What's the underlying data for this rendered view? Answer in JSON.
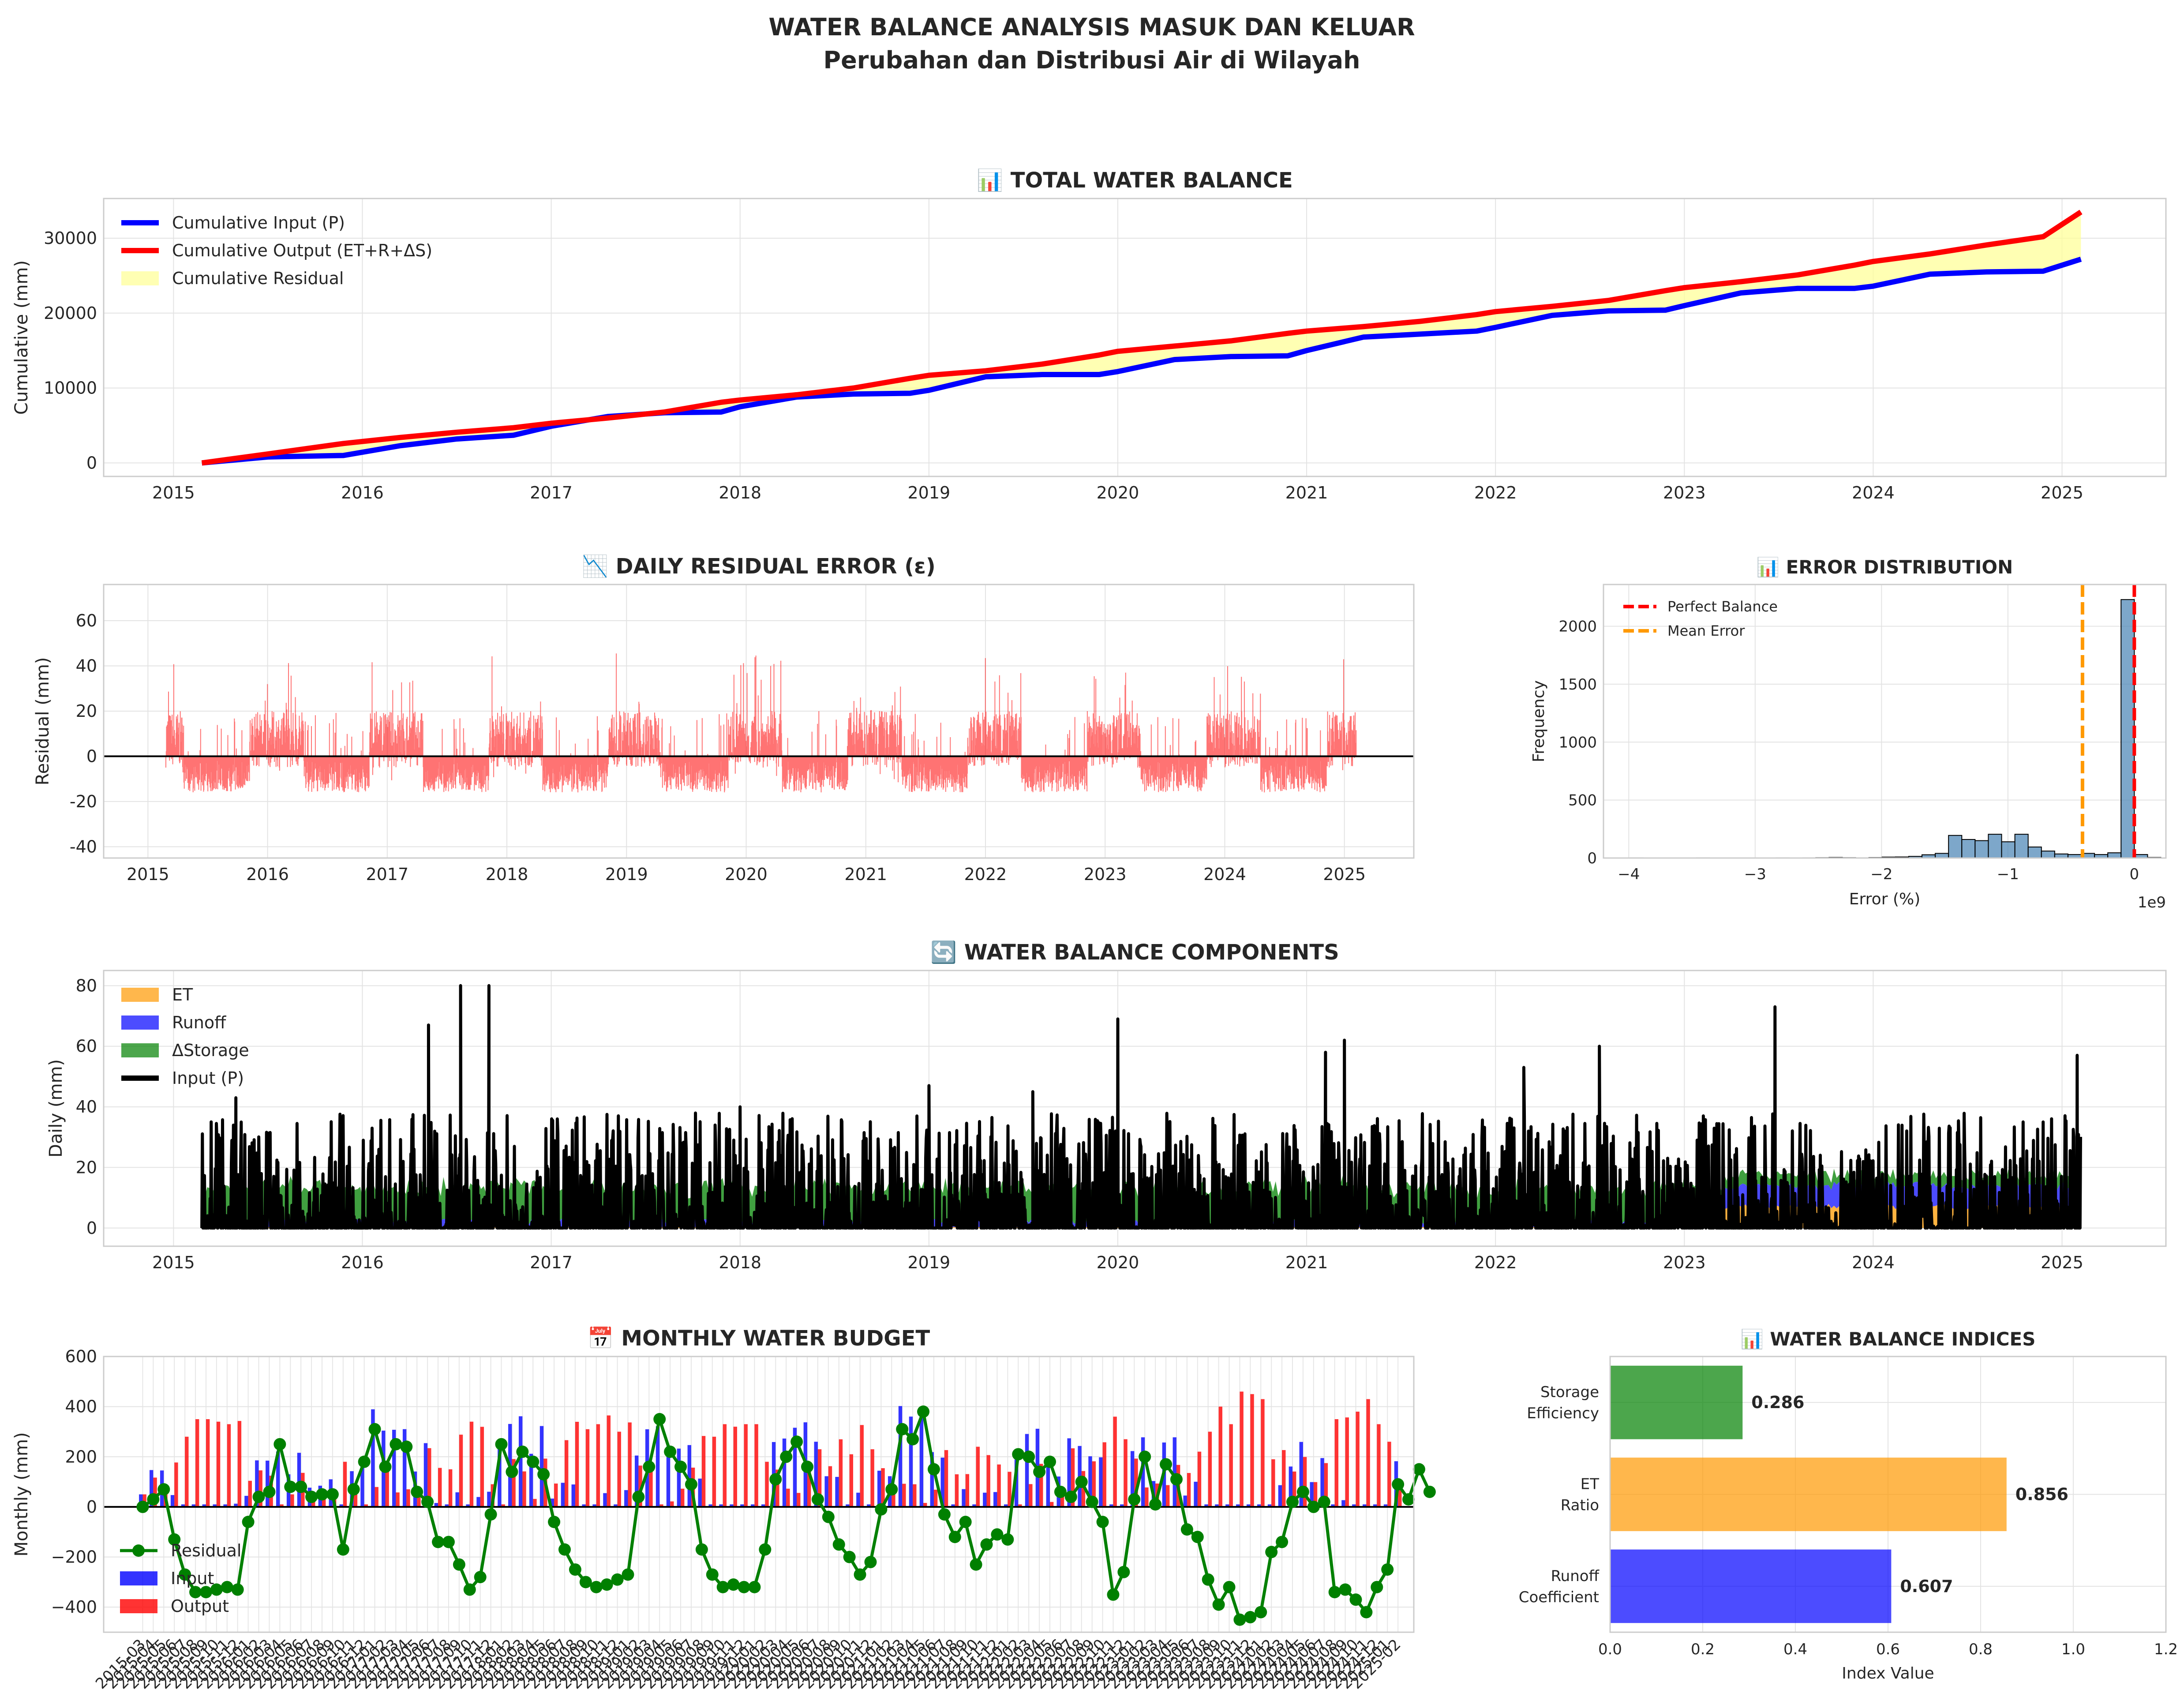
{
  "figure": {
    "title_line1": "WATER BALANCE ANALYSIS MASUK DAN KELUAR",
    "title_line2": "Perubahan dan Distribusi Air di Wilayah"
  },
  "chart_data": [
    {
      "id": "total",
      "type": "line",
      "title": "📊 TOTAL WATER BALANCE",
      "ylabel": "Cumulative (mm)",
      "xlabel": "",
      "xlim": [
        2014.63,
        2025.55
      ],
      "ylim": [
        -1800,
        35300
      ],
      "x_ticks": [
        2015,
        2016,
        2017,
        2018,
        2019,
        2020,
        2021,
        2022,
        2023,
        2024,
        2025
      ],
      "y_ticks": [
        0,
        10000,
        20000,
        30000
      ],
      "legend_position": "upper-left",
      "grid": true,
      "series": [
        {
          "name": "Cumulative Input (P)",
          "color": "#0000ff",
          "x": [
            2015.15,
            2015.5,
            2015.9,
            2016.2,
            2016.5,
            2016.8,
            2017.0,
            2017.3,
            2017.6,
            2017.9,
            2018.0,
            2018.3,
            2018.6,
            2018.9,
            2019.0,
            2019.3,
            2019.6,
            2019.9,
            2020.0,
            2020.3,
            2020.6,
            2020.9,
            2021.0,
            2021.3,
            2021.6,
            2021.9,
            2022.0,
            2022.3,
            2022.6,
            2022.9,
            2023.0,
            2023.3,
            2023.6,
            2023.9,
            2024.0,
            2024.3,
            2024.6,
            2024.9,
            2025.1
          ],
          "y": [
            0,
            800,
            1000,
            2300,
            3200,
            3700,
            4900,
            6200,
            6700,
            6800,
            7500,
            8800,
            9200,
            9300,
            9700,
            11500,
            11800,
            11800,
            12200,
            13800,
            14200,
            14300,
            15000,
            16800,
            17200,
            17600,
            18100,
            19700,
            20300,
            20400,
            21000,
            22700,
            23300,
            23300,
            23600,
            25200,
            25500,
            25600,
            27200
          ]
        },
        {
          "name": "Cumulative Output (ET+R+ΔS)",
          "color": "#ff0000",
          "x": [
            2015.15,
            2015.5,
            2015.9,
            2016.2,
            2016.5,
            2016.8,
            2017.0,
            2017.3,
            2017.6,
            2017.9,
            2018.0,
            2018.3,
            2018.6,
            2018.9,
            2019.0,
            2019.3,
            2019.6,
            2019.9,
            2020.0,
            2020.3,
            2020.6,
            2020.9,
            2021.0,
            2021.3,
            2021.6,
            2021.9,
            2022.0,
            2022.3,
            2022.6,
            2022.9,
            2023.0,
            2023.3,
            2023.6,
            2023.9,
            2024.0,
            2024.3,
            2024.6,
            2024.9,
            2025.1
          ],
          "y": [
            0,
            1200,
            2600,
            3400,
            4100,
            4700,
            5300,
            6000,
            6800,
            8100,
            8400,
            9100,
            10000,
            11300,
            11700,
            12300,
            13200,
            14400,
            14900,
            15600,
            16300,
            17300,
            17600,
            18200,
            18900,
            19800,
            20200,
            20900,
            21700,
            23000,
            23400,
            24200,
            25100,
            26400,
            26900,
            27900,
            29100,
            30200,
            33500
          ]
        }
      ],
      "fill": {
        "name": "Cumulative Residual",
        "color": "#ffff99"
      }
    },
    {
      "id": "residual",
      "type": "line",
      "title": "📉 DAILY RESIDUAL ERROR (ε)",
      "ylabel": "Residual (mm)",
      "xlabel": "",
      "xlim": [
        2014.63,
        2025.58
      ],
      "ylim": [
        -45,
        76
      ],
      "x_ticks": [
        2015,
        2016,
        2017,
        2018,
        2019,
        2020,
        2021,
        2022,
        2023,
        2024,
        2025
      ],
      "y_ticks": [
        -40,
        -20,
        0,
        20,
        40,
        60
      ],
      "series": [
        {
          "name": "Residual",
          "color": "#ff0000"
        }
      ]
    },
    {
      "id": "error_dist",
      "type": "bar",
      "title": "📊 ERROR DISTRIBUTION",
      "xlabel": "Error (%)",
      "ylabel": "Frequency",
      "x_offset_label": "1e9",
      "xlim": [
        -4.2,
        0.25
      ],
      "ylim": [
        0,
        2360
      ],
      "x_ticks": [
        -4,
        -3,
        -2,
        -1,
        0
      ],
      "x_tick_labels": [
        "−4",
        "−3",
        "−2",
        "−1",
        "0"
      ],
      "y_ticks": [
        0,
        500,
        1000,
        1500,
        2000
      ],
      "bin_width": 0.105,
      "bin_starts": [
        -3.99,
        -3.885,
        -3.78,
        -3.675,
        -3.57,
        -3.465,
        -3.36,
        -3.255,
        -3.15,
        -3.045,
        -2.94,
        -2.835,
        -2.73,
        -2.625,
        -2.52,
        -2.415,
        -2.31,
        -2.205,
        -2.1,
        -1.995,
        -1.89,
        -1.785,
        -1.68,
        -1.575,
        -1.47,
        -1.365,
        -1.26,
        -1.155,
        -1.05,
        -0.945,
        -0.84,
        -0.735,
        -0.63,
        -0.525,
        -0.42,
        -0.315,
        -0.21,
        -0.105,
        0.0,
        0.105
      ],
      "values": [
        2,
        0,
        1,
        0,
        0,
        2,
        0,
        1,
        0,
        0,
        1,
        2,
        0,
        2,
        3,
        5,
        3,
        2,
        4,
        8,
        9,
        14,
        28,
        40,
        195,
        160,
        150,
        205,
        140,
        205,
        95,
        60,
        35,
        30,
        40,
        30,
        45,
        2230,
        30,
        5
      ],
      "vlines": [
        {
          "name": "Perfect Balance",
          "x": 0.0,
          "color": "#ff0000"
        },
        {
          "name": "Mean Error",
          "x": -0.41,
          "color": "#ff9900"
        }
      ]
    },
    {
      "id": "components",
      "type": "area",
      "title": "🔄 WATER BALANCE COMPONENTS",
      "ylabel": "Daily (mm)",
      "xlabel": "",
      "xlim": [
        2014.63,
        2025.55
      ],
      "ylim": [
        -6,
        85
      ],
      "x_ticks": [
        2015,
        2016,
        2017,
        2018,
        2019,
        2020,
        2021,
        2022,
        2023,
        2024,
        2025
      ],
      "y_ticks": [
        0,
        20,
        40,
        60,
        80
      ],
      "series": [
        {
          "name": "ET",
          "color": "#ff9900"
        },
        {
          "name": "Runoff",
          "color": "#0000ff"
        },
        {
          "name": "ΔStorage",
          "color": "#008000"
        },
        {
          "name": "Input (P)",
          "color": "#000000"
        }
      ],
      "input_peaks": [
        {
          "x": 2015.33,
          "y": 43
        },
        {
          "x": 2016.35,
          "y": 67
        },
        {
          "x": 2016.52,
          "y": 80
        },
        {
          "x": 2016.67,
          "y": 80
        },
        {
          "x": 2018.0,
          "y": 40
        },
        {
          "x": 2019.0,
          "y": 47
        },
        {
          "x": 2019.55,
          "y": 45
        },
        {
          "x": 2020.0,
          "y": 69
        },
        {
          "x": 2021.1,
          "y": 58
        },
        {
          "x": 2021.2,
          "y": 62
        },
        {
          "x": 2022.15,
          "y": 53
        },
        {
          "x": 2022.55,
          "y": 60
        },
        {
          "x": 2023.48,
          "y": 73
        },
        {
          "x": 2024.9,
          "y": 35
        },
        {
          "x": 2025.08,
          "y": 57
        }
      ]
    },
    {
      "id": "monthly",
      "type": "bar",
      "title": "📅 MONTHLY WATER BUDGET",
      "ylabel": "Monthly (mm)",
      "xlabel": "",
      "ylim": [
        -500,
        600
      ],
      "y_ticks": [
        -400,
        -200,
        0,
        200,
        400,
        600
      ],
      "legend_position": "lower-left",
      "start_year": 2015,
      "start_month": 3,
      "months": 120,
      "series": [
        {
          "name": "Residual",
          "color": "#008000",
          "values": [
            0,
            30,
            70,
            -130,
            -270,
            -340,
            -340,
            -330,
            -320,
            -330,
            -60,
            40,
            60,
            250,
            80,
            80,
            40,
            50,
            50,
            -170,
            70,
            180,
            310,
            160,
            250,
            240,
            60,
            20,
            -140,
            -140,
            -230,
            -330,
            -280,
            -30,
            250,
            140,
            220,
            180,
            130,
            -60,
            -170,
            -250,
            -300,
            -320,
            -310,
            -290,
            -270,
            40,
            160,
            350,
            220,
            160,
            90,
            -170,
            -270,
            -320,
            -310,
            -320,
            -320,
            -170,
            110,
            200,
            260,
            160,
            30,
            -40,
            -150,
            -200,
            -270,
            -220,
            -10,
            70,
            310,
            270,
            380,
            150,
            -30,
            -120,
            -60,
            -230,
            -150,
            -110,
            -130,
            210,
            200,
            140,
            180,
            60,
            40,
            100,
            20,
            -60,
            -350,
            -260,
            30,
            200,
            10,
            170,
            110,
            -90,
            -120,
            -290,
            -390,
            -320,
            -450,
            -440,
            -420,
            -180,
            -140,
            20,
            60,
            0,
            20,
            -340,
            -330,
            -370,
            -420,
            -320,
            -250,
            90,
            30,
            150,
            60
          ]
        },
        {
          "name": "Input",
          "color": "#0000ff"
        },
        {
          "name": "Output",
          "color": "#ff0000"
        }
      ],
      "x_tick_labels": [
        "2015-03",
        "2015-04",
        "2015-05",
        "2015-06",
        "2015-07",
        "2015-08",
        "2015-09",
        "2015-10",
        "2015-11",
        "2015-12",
        "2016-01",
        "2016-02",
        "2016-03",
        "2016-04",
        "2016-05",
        "2016-06",
        "2016-07",
        "2016-08",
        "2016-09",
        "2016-10",
        "2016-11",
        "2016-12",
        "2017-01",
        "2017-02",
        "2017-03",
        "2017-04",
        "2017-05",
        "2017-06",
        "2017-07",
        "2017-08",
        "2017-09",
        "2017-10",
        "2017-11",
        "2017-12",
        "2018-01",
        "2018-02",
        "2018-03",
        "2018-04",
        "2018-05",
        "2018-06",
        "2018-07",
        "2018-08",
        "2018-09",
        "2018-10",
        "2018-11",
        "2018-12",
        "2019-01",
        "2019-02",
        "2019-03",
        "2019-04",
        "2019-05",
        "2019-06",
        "2019-07",
        "2019-08",
        "2019-09",
        "2019-10",
        "2019-11",
        "2019-12",
        "2020-01",
        "2020-02",
        "2020-03",
        "2020-04",
        "2020-05",
        "2020-06",
        "2020-07",
        "2020-08",
        "2020-09",
        "2020-10",
        "2020-11",
        "2020-12",
        "2021-01",
        "2021-02",
        "2021-03",
        "2021-04",
        "2021-05",
        "2021-06",
        "2021-07",
        "2021-08",
        "2021-09",
        "2021-10",
        "2021-11",
        "2021-12",
        "2022-01",
        "2022-02",
        "2022-03",
        "2022-04",
        "2022-05",
        "2022-06",
        "2022-07",
        "2022-08",
        "2022-09",
        "2022-10",
        "2022-11",
        "2022-12",
        "2023-01",
        "2023-02",
        "2023-03",
        "2023-04",
        "2023-05",
        "2023-06",
        "2023-07",
        "2023-08",
        "2023-09",
        "2023-10",
        "2023-11",
        "2023-12",
        "2024-01",
        "2024-02",
        "2024-03",
        "2024-04",
        "2024-05",
        "2024-06",
        "2024-07",
        "2024-08",
        "2024-09",
        "2024-10",
        "2024-11",
        "2024-12",
        "2025-01",
        "2025-02"
      ]
    },
    {
      "id": "indices",
      "type": "bar",
      "orientation": "horizontal",
      "title": "📊 WATER BALANCE INDICES",
      "xlabel": "Index Value",
      "ylabel": "",
      "xlim": [
        0,
        1.2
      ],
      "x_ticks": [
        0.0,
        0.2,
        0.4,
        0.6,
        0.8,
        1.0,
        1.2
      ],
      "x_tick_labels": [
        "0.0",
        "0.2",
        "0.4",
        "0.6",
        "0.8",
        "1.0",
        "1.2"
      ],
      "categories": [
        {
          "line1": "Storage",
          "line2": "Efficiency"
        },
        {
          "line1": "ET",
          "line2": "Ratio"
        },
        {
          "line1": "Runoff",
          "line2": "Coefficient"
        }
      ],
      "values": [
        0.286,
        0.856,
        0.607
      ],
      "value_labels": [
        "0.286",
        "0.856",
        "0.607"
      ],
      "colors": [
        "#008000",
        "#ff9900",
        "#0000ff"
      ]
    }
  ]
}
